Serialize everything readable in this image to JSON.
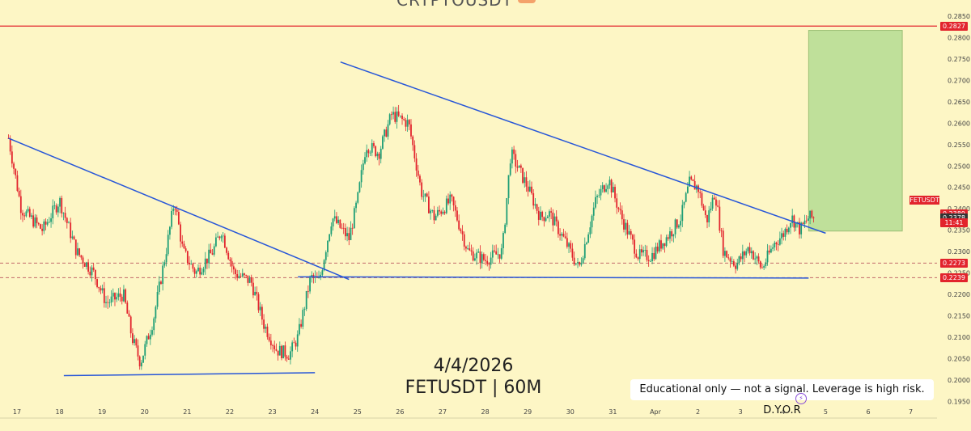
{
  "header": {
    "title": "CRYPTOUSDT"
  },
  "captions": {
    "date": "4/4/2026",
    "pair": "FETUSDT | 60M",
    "disclaimer": "Educational only — not a signal. Leverage is high risk. D.Y.O.R"
  },
  "symbol_tag": "FETUSDT",
  "colors": {
    "background": "#fdf6c5",
    "bull": "#1e9e76",
    "bear": "#e2242d",
    "trendline": "#2756d8",
    "resistance": "#e2242d",
    "target_zone": "#bfe09a",
    "axis_text": "#444444"
  },
  "chart_data": {
    "type": "candlestick",
    "x_labels": [
      "17",
      "18",
      "19",
      "20",
      "21",
      "22",
      "23",
      "24",
      "25",
      "26",
      "27",
      "28",
      "29",
      "30",
      "31",
      "Apr",
      "2",
      "3",
      "4",
      "5",
      "6",
      "7"
    ],
    "y_ticks": [
      "0.2850",
      "0.2800",
      "0.2750",
      "0.2700",
      "0.2650",
      "0.2600",
      "0.2550",
      "0.2500",
      "0.2450",
      "0.2400",
      "0.2350",
      "0.2300",
      "0.2250",
      "0.2200",
      "0.2150",
      "0.2100",
      "0.2050",
      "0.2000",
      "0.1950"
    ],
    "ylim": [
      0.194,
      0.286
    ],
    "price_labels": [
      {
        "value": 0.2827,
        "text": "0.2827",
        "color": "#e2242d"
      },
      {
        "value": 0.2389,
        "text": "0.2389",
        "color": "#e2242d"
      },
      {
        "value": 0.2378,
        "text": "0.2378",
        "color": "#333333"
      },
      {
        "value": 0.2273,
        "text": "0.2273",
        "color": "#e2242d"
      },
      {
        "value": 0.2239,
        "text": "0.2239",
        "color": "#e2242d"
      }
    ],
    "countdown": "11:41",
    "horizontal_lines": [
      {
        "value": 0.2827,
        "style": "solid",
        "color": "#e2242d"
      },
      {
        "value": 0.2273,
        "style": "dashed",
        "color": "#c26a6a"
      },
      {
        "value": 0.2239,
        "style": "dashed",
        "color": "#c26a6a"
      }
    ],
    "trendlines": [
      {
        "from": [
          -0.2,
          0.2565
        ],
        "to": [
          7.8,
          0.2235
        ]
      },
      {
        "from": [
          6.6,
          0.2241
        ],
        "to": [
          18.6,
          0.2238
        ]
      },
      {
        "from": [
          1.1,
          0.201
        ],
        "to": [
          7.0,
          0.2017
        ]
      },
      {
        "from": [
          7.6,
          0.2743
        ],
        "to": [
          19.0,
          0.2343
        ]
      }
    ],
    "target_zone": {
      "x_from": 18.6,
      "x_to": 20.8,
      "y_from": 0.2348,
      "y_to": 0.2817
    },
    "waypoints": [
      [
        -0.2,
        0.2565
      ],
      [
        0.1,
        0.24
      ],
      [
        0.6,
        0.235
      ],
      [
        1.0,
        0.242
      ],
      [
        1.4,
        0.23
      ],
      [
        1.8,
        0.225
      ],
      [
        2.1,
        0.218
      ],
      [
        2.5,
        0.22
      ],
      [
        2.7,
        0.21
      ],
      [
        2.9,
        0.204
      ],
      [
        3.2,
        0.214
      ],
      [
        3.5,
        0.23
      ],
      [
        3.7,
        0.242
      ],
      [
        3.9,
        0.23
      ],
      [
        4.2,
        0.225
      ],
      [
        4.6,
        0.23
      ],
      [
        4.8,
        0.235
      ],
      [
        5.1,
        0.225
      ],
      [
        5.5,
        0.223
      ],
      [
        5.8,
        0.213
      ],
      [
        6.1,
        0.207
      ],
      [
        6.4,
        0.206
      ],
      [
        6.6,
        0.21
      ],
      [
        6.9,
        0.224
      ],
      [
        7.1,
        0.223
      ],
      [
        7.4,
        0.238
      ],
      [
        7.8,
        0.233
      ],
      [
        8.0,
        0.242
      ],
      [
        8.2,
        0.255
      ],
      [
        8.5,
        0.253
      ],
      [
        8.8,
        0.262
      ],
      [
        9.2,
        0.26
      ],
      [
        9.5,
        0.244
      ],
      [
        9.8,
        0.238
      ],
      [
        10.2,
        0.242
      ],
      [
        10.6,
        0.23
      ],
      [
        11.0,
        0.228
      ],
      [
        11.4,
        0.23
      ],
      [
        11.6,
        0.253
      ],
      [
        12.0,
        0.245
      ],
      [
        12.3,
        0.238
      ],
      [
        12.5,
        0.239
      ],
      [
        12.9,
        0.232
      ],
      [
        13.2,
        0.226
      ],
      [
        13.6,
        0.242
      ],
      [
        13.9,
        0.247
      ],
      [
        14.2,
        0.238
      ],
      [
        14.6,
        0.229
      ],
      [
        14.9,
        0.229
      ],
      [
        15.4,
        0.235
      ],
      [
        15.6,
        0.238
      ],
      [
        15.8,
        0.246
      ],
      [
        16.0,
        0.245
      ],
      [
        16.2,
        0.237
      ],
      [
        16.4,
        0.244
      ],
      [
        16.6,
        0.23
      ],
      [
        16.9,
        0.227
      ],
      [
        17.2,
        0.231
      ],
      [
        17.5,
        0.226
      ],
      [
        17.8,
        0.232
      ],
      [
        18.0,
        0.234
      ],
      [
        18.2,
        0.238
      ],
      [
        18.4,
        0.235
      ],
      [
        18.6,
        0.238
      ],
      [
        18.75,
        0.2378
      ]
    ]
  }
}
